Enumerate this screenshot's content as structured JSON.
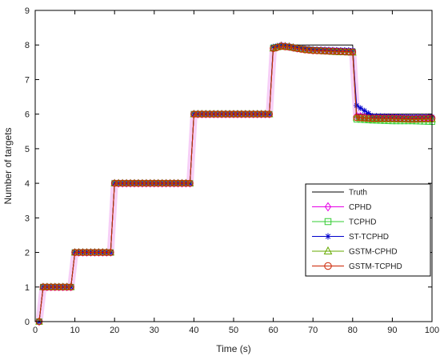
{
  "chart_data": {
    "type": "line",
    "xlabel": "Time (s)",
    "ylabel": "Number of targets",
    "xlim": [
      0,
      100
    ],
    "ylim": [
      0,
      9
    ],
    "xticks": [
      "0",
      "10",
      "20",
      "30",
      "40",
      "50",
      "60",
      "70",
      "80",
      "90",
      "100"
    ],
    "yticks": [
      "0",
      "1",
      "2",
      "3",
      "4",
      "5",
      "6",
      "7",
      "8",
      "9"
    ],
    "grid": false,
    "legend_position": "bottom-right",
    "series": [
      {
        "name": "Truth",
        "color": "#000000",
        "marker": "none",
        "x": [
          1,
          2,
          9,
          10,
          19,
          20,
          39,
          40,
          59,
          60,
          80,
          81,
          100
        ],
        "y": [
          0,
          1,
          1,
          2,
          2,
          4,
          4,
          6,
          6,
          8,
          8,
          6,
          6
        ]
      },
      {
        "name": "CPHD",
        "color": "#e600e6",
        "marker": "diamond",
        "x": [
          1,
          2,
          9,
          10,
          19,
          20,
          39,
          40,
          59,
          60,
          62,
          64,
          66,
          68,
          70,
          75,
          80,
          81,
          85,
          90,
          95,
          100
        ],
        "y": [
          0,
          1,
          1,
          2,
          2,
          4,
          4,
          6,
          6,
          7.9,
          7.98,
          7.95,
          7.9,
          7.88,
          7.85,
          7.83,
          7.8,
          5.95,
          5.9,
          5.9,
          5.88,
          5.9
        ]
      },
      {
        "name": "TCPHD",
        "color": "#33cc33",
        "marker": "square",
        "x": [
          1,
          2,
          9,
          10,
          19,
          20,
          39,
          40,
          59,
          60,
          62,
          64,
          66,
          68,
          70,
          75,
          80,
          81,
          85,
          90,
          95,
          100
        ],
        "y": [
          0,
          1,
          1,
          2,
          2,
          4,
          4,
          6,
          6,
          7.92,
          7.96,
          7.94,
          7.9,
          7.87,
          7.85,
          7.82,
          7.8,
          5.85,
          5.82,
          5.8,
          5.8,
          5.78
        ]
      },
      {
        "name": "ST-TCPHD",
        "color": "#0000cc",
        "marker": "star",
        "x": [
          1,
          2,
          9,
          10,
          19,
          20,
          39,
          40,
          59,
          60,
          62,
          64,
          66,
          68,
          70,
          75,
          80,
          81,
          85,
          90,
          95,
          100
        ],
        "y": [
          0,
          1,
          1,
          2,
          2,
          4,
          4,
          6,
          6,
          7.95,
          8.0,
          7.97,
          7.93,
          7.9,
          7.88,
          7.86,
          7.85,
          6.25,
          5.95,
          5.93,
          5.92,
          5.92
        ]
      },
      {
        "name": "GSTM-CPHD",
        "color": "#66aa00",
        "marker": "triangle",
        "x": [
          1,
          2,
          9,
          10,
          19,
          20,
          39,
          40,
          59,
          60,
          62,
          64,
          66,
          68,
          70,
          75,
          80,
          81,
          85,
          90,
          95,
          100
        ],
        "y": [
          0,
          1,
          1,
          2,
          2,
          4,
          4,
          6,
          6,
          7.9,
          7.97,
          7.95,
          7.9,
          7.87,
          7.84,
          7.8,
          7.78,
          5.9,
          5.85,
          5.85,
          5.84,
          5.85
        ]
      },
      {
        "name": "GSTM-TCPHD",
        "color": "#cc2200",
        "marker": "circle",
        "x": [
          1,
          2,
          9,
          10,
          19,
          20,
          39,
          40,
          59,
          60,
          62,
          64,
          66,
          68,
          70,
          75,
          80,
          81,
          85,
          90,
          95,
          100
        ],
        "y": [
          0,
          1,
          1,
          2,
          2,
          4,
          4,
          6,
          6,
          7.9,
          7.96,
          7.94,
          7.9,
          7.86,
          7.84,
          7.82,
          7.8,
          5.9,
          5.88,
          5.88,
          5.86,
          5.88
        ]
      }
    ]
  }
}
